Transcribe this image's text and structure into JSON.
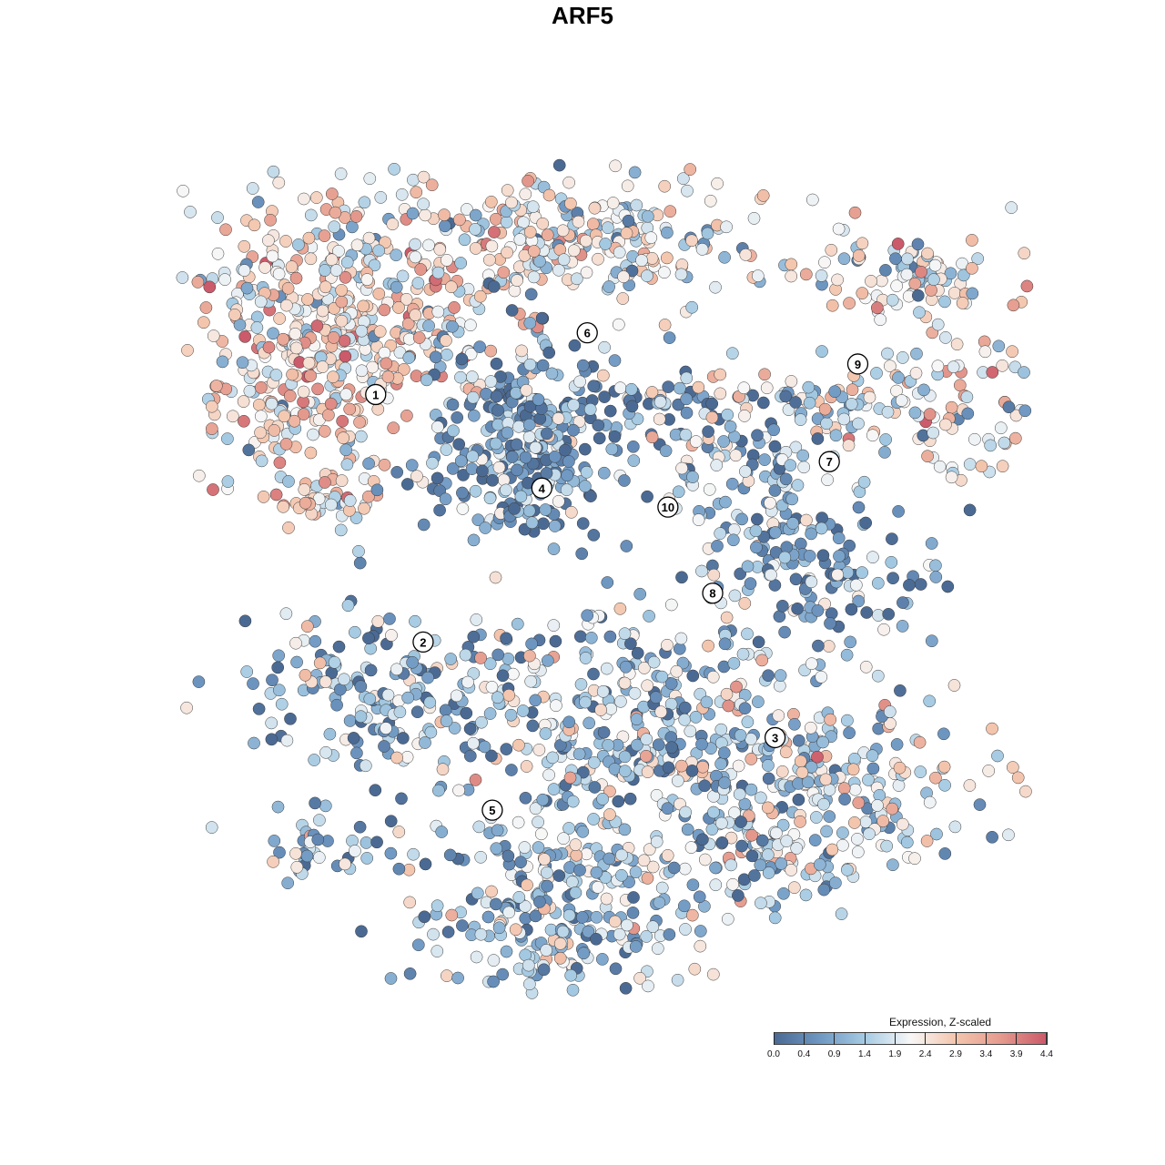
{
  "chart_data": {
    "type": "scatter",
    "title": "ARF5",
    "xlabel": "",
    "ylabel": "",
    "grid": false,
    "legend": {
      "title": "Expression, Z-scaled",
      "placement": "bottom-right",
      "range": [
        0.0,
        4.4
      ],
      "ticks": [
        "0.0",
        "0.4",
        "0.9",
        "1.4",
        "1.9",
        "2.4",
        "2.9",
        "3.4",
        "3.9",
        "4.4"
      ],
      "colors": [
        "#4b6a93",
        "#6e97c2",
        "#a6cbe3",
        "#f7f7f7",
        "#f4c6ae",
        "#e59b8e",
        "#cb5a6a"
      ]
    },
    "clusters": [
      {
        "label": "1",
        "x": -30.5,
        "y": 24.1,
        "mean_expression": 2.5
      },
      {
        "label": "2",
        "x": -23.5,
        "y": -12.4,
        "mean_expression": 1.1
      },
      {
        "label": "3",
        "x": 28.4,
        "y": -26.5,
        "mean_expression": 1.8
      },
      {
        "label": "4",
        "x": -6.0,
        "y": 10.3,
        "mean_expression": 0.8
      },
      {
        "label": "5",
        "x": -13.3,
        "y": -37.2,
        "mean_expression": 1.4
      },
      {
        "label": "6",
        "x": 0.7,
        "y": 33.2,
        "mean_expression": 2.0
      },
      {
        "label": "7",
        "x": 36.4,
        "y": 14.2,
        "mean_expression": 2.2
      },
      {
        "label": "8",
        "x": 19.2,
        "y": -5.2,
        "mean_expression": 0.9
      },
      {
        "label": "9",
        "x": 40.6,
        "y": 28.6,
        "mean_expression": 2.1
      },
      {
        "label": "10",
        "x": 12.6,
        "y": 7.5,
        "mean_expression": 1.1
      }
    ]
  }
}
